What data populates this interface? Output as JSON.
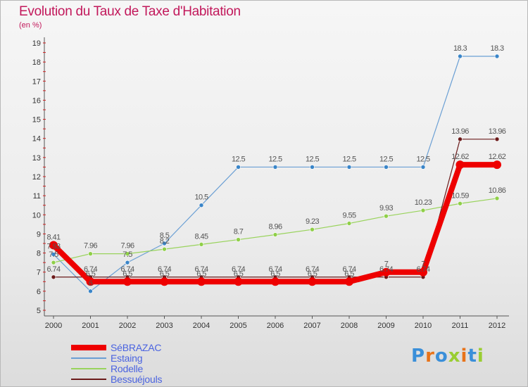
{
  "chart_data": {
    "type": "line",
    "title": "Evolution du Taux de Taxe d'Habitation",
    "subtitle": "(en %)",
    "x": [
      "2000",
      "2001",
      "2002",
      "2003",
      "2004",
      "2005",
      "2006",
      "2007",
      "2008",
      "2009",
      "2010",
      "2011",
      "2012"
    ],
    "ylim": [
      5,
      19
    ],
    "yticks": [
      "5",
      "6",
      "7",
      "8",
      "9",
      "10",
      "11",
      "12",
      "13",
      "14",
      "15",
      "16",
      "17",
      "18",
      "19"
    ],
    "grid": false,
    "legend_position": "bottom-left",
    "series": [
      {
        "name": "SéBRAZAC",
        "color": "#ee0000",
        "values": [
          8.41,
          6.5,
          6.5,
          6.5,
          6.5,
          6.5,
          6.5,
          6.5,
          6.5,
          7,
          7,
          12.62,
          12.62
        ],
        "labels": [
          "8.41",
          "6.5",
          "6.5",
          "6.5",
          "6.5",
          "6.5",
          "6.5",
          "6.5",
          "6.5",
          "7",
          "7",
          "12.62",
          "12.62"
        ]
      },
      {
        "name": "Estaing",
        "color": "#6a9fd4",
        "values": [
          7.93,
          6,
          7.5,
          8.5,
          10.5,
          12.5,
          12.5,
          12.5,
          12.5,
          12.5,
          12.5,
          18.3,
          18.3
        ],
        "labels": [
          "7.93",
          "6",
          "7.5",
          "8.5",
          "10.5",
          "12.5",
          "12.5",
          "12.5",
          "12.5",
          "12.5",
          "12.5",
          "18.3",
          "18.3"
        ]
      },
      {
        "name": "Rodelle",
        "color": "#99d35c",
        "values": [
          7.5,
          7.96,
          7.96,
          8.2,
          8.45,
          8.7,
          8.96,
          9.23,
          9.55,
          9.93,
          10.23,
          10.59,
          10.86
        ],
        "labels": [
          "7.5",
          "7.96",
          "7.96",
          "8.2",
          "8.45",
          "8.7",
          "8.96",
          "9.23",
          "9.55",
          "9.93",
          "10.23",
          "10.59",
          "10.86"
        ]
      },
      {
        "name": "Bessuéjouls",
        "color": "#6b1a1a",
        "values": [
          6.74,
          6.74,
          6.74,
          6.74,
          6.74,
          6.74,
          6.74,
          6.74,
          6.74,
          6.74,
          6.74,
          13.96,
          13.96
        ],
        "labels": [
          "6.74",
          "6.74",
          "6.74",
          "6.74",
          "6.74",
          "6.74",
          "6.74",
          "6.74",
          "6.74",
          "6.74",
          "6.74",
          "13.96",
          "13.96"
        ]
      }
    ]
  },
  "logo": {
    "letters": [
      "P",
      "r",
      "o",
      "x",
      "i",
      "t",
      "i"
    ],
    "colors": [
      "#3a8fd9",
      "#e8731a",
      "#3a8fd9",
      "#9acd32",
      "#e8731a",
      "#3a8fd9",
      "#9acd32"
    ]
  }
}
